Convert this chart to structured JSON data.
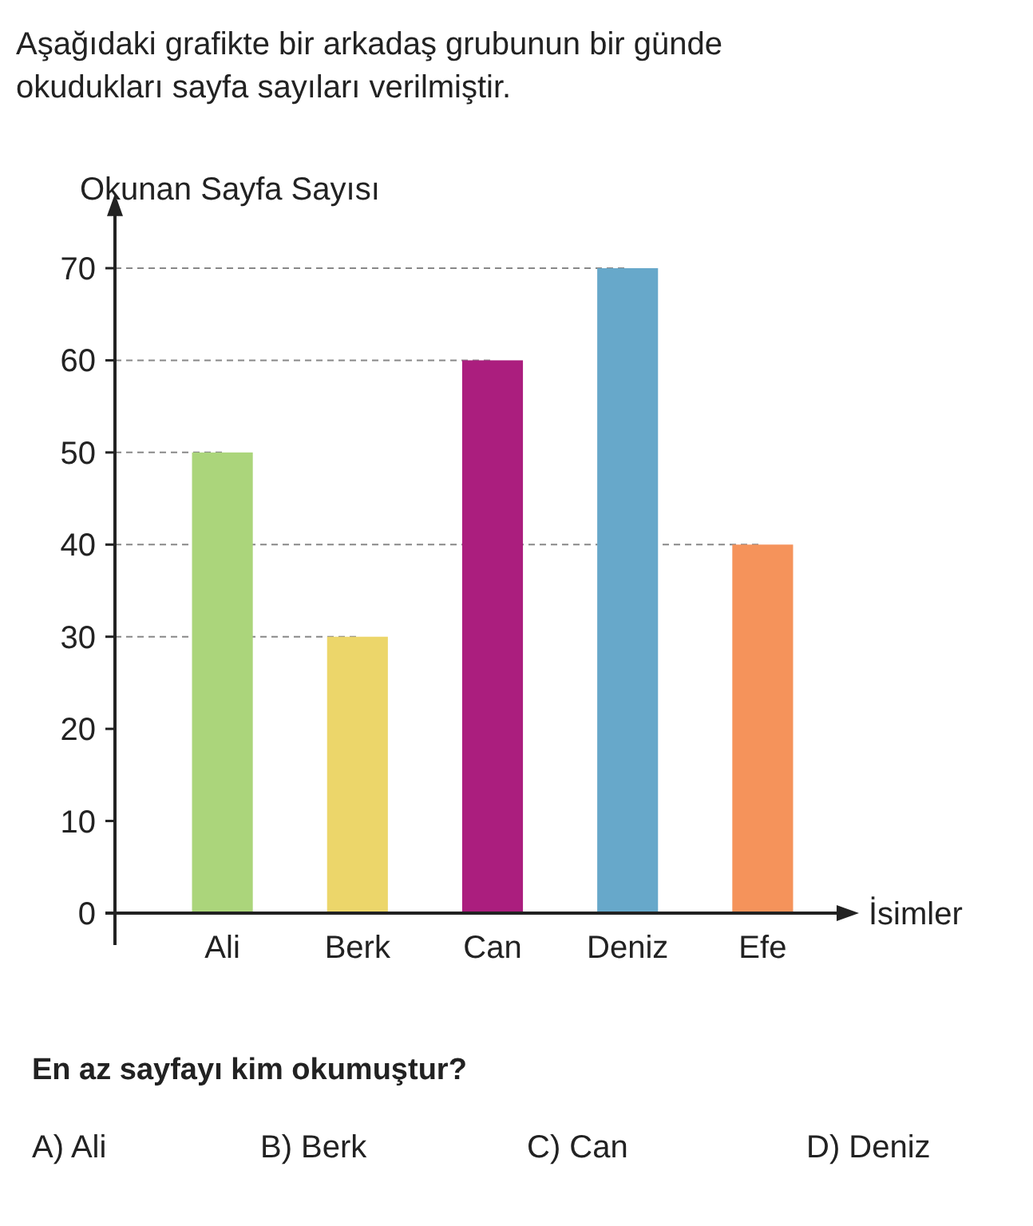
{
  "chart_data": {
    "type": "bar",
    "title": "Aşağıdaki grafikte bir arkadaş grubunun bir günde okudukları sayfa sayıları verilmiştir.",
    "ylabel": "Okunan Sayfa Sayısı",
    "xlabel": "İsimler",
    "categories": [
      "Ali",
      "Berk",
      "Can",
      "Deniz",
      "Efe"
    ],
    "values": [
      50,
      30,
      60,
      70,
      40
    ],
    "colors": [
      "#abd57b",
      "#ecd66a",
      "#ab1e7e",
      "#67a8ca",
      "#f5935b"
    ],
    "ylim": [
      0,
      76
    ],
    "yticks": [
      0,
      10,
      20,
      30,
      40,
      50,
      60,
      70
    ],
    "ref_lines": [
      {
        "axis": "y",
        "value": 70,
        "line_style": "dashed",
        "color": "#888888"
      },
      {
        "axis": "y",
        "value": 60,
        "line_style": "dashed",
        "color": "#888888"
      },
      {
        "axis": "y",
        "value": 50,
        "line_style": "dashed",
        "color": "#888888"
      },
      {
        "axis": "y",
        "value": 40,
        "line_style": "dashed",
        "color": "#888888"
      },
      {
        "axis": "y",
        "value": 30,
        "line_style": "dashed",
        "color": "#888888"
      }
    ],
    "annotations": [
      "En az sayfayı kim okumuştur?",
      "A) Ali",
      "B) Berk",
      "C) Can",
      "D) Deniz"
    ]
  }
}
